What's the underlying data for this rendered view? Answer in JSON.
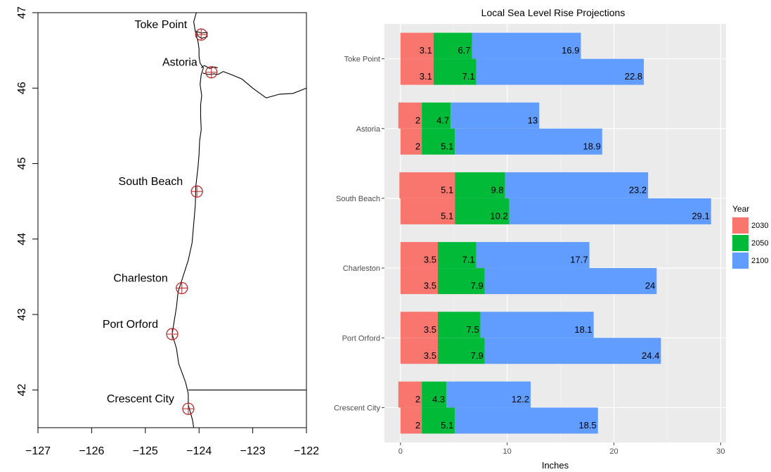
{
  "chart_data": [
    {
      "type": "map",
      "xlim": [
        -127,
        -122
      ],
      "ylim": [
        41.5,
        47
      ],
      "x_ticks": [
        -127,
        -126,
        -125,
        -124,
        -123,
        -122
      ],
      "y_ticks": [
        42,
        43,
        44,
        45,
        46,
        47
      ],
      "x_tick_labels": [
        "−127",
        "−126",
        "−125",
        "−124",
        "−123",
        "−122"
      ],
      "y_tick_labels": [
        "42",
        "43",
        "44",
        "45",
        "46",
        "47"
      ],
      "stations": [
        {
          "name": "Toke Point",
          "lon": -123.96,
          "lat": 46.71
        },
        {
          "name": "Astoria",
          "lon": -123.77,
          "lat": 46.21
        },
        {
          "name": "South Beach",
          "lon": -124.04,
          "lat": 44.63
        },
        {
          "name": "Charleston",
          "lon": -124.32,
          "lat": 43.35
        },
        {
          "name": "Port Orford",
          "lon": -124.5,
          "lat": 42.74
        },
        {
          "name": "Crescent City",
          "lon": -124.2,
          "lat": 41.75
        }
      ],
      "coastline": [
        [
          -124.05,
          47.0
        ],
        [
          -124.1,
          46.88
        ],
        [
          -124.07,
          46.75
        ],
        [
          -124.02,
          46.62
        ],
        [
          -124.0,
          46.52
        ],
        [
          -124.0,
          46.42
        ],
        [
          -123.98,
          46.33
        ],
        [
          -123.92,
          46.27
        ],
        [
          -123.93,
          46.24
        ],
        [
          -123.96,
          46.18
        ],
        [
          -123.98,
          46.05
        ],
        [
          -123.95,
          45.9
        ],
        [
          -123.97,
          45.78
        ],
        [
          -123.97,
          45.62
        ],
        [
          -123.96,
          45.45
        ],
        [
          -123.99,
          45.3
        ],
        [
          -124.0,
          45.12
        ],
        [
          -124.02,
          44.95
        ],
        [
          -124.06,
          44.7
        ],
        [
          -124.07,
          44.45
        ],
        [
          -124.1,
          44.2
        ],
        [
          -124.13,
          43.95
        ],
        [
          -124.2,
          43.72
        ],
        [
          -124.3,
          43.5
        ],
        [
          -124.39,
          43.3
        ],
        [
          -124.42,
          43.1
        ],
        [
          -124.47,
          42.88
        ],
        [
          -124.5,
          42.74
        ],
        [
          -124.42,
          42.55
        ],
        [
          -124.38,
          42.35
        ],
        [
          -124.25,
          42.1
        ],
        [
          -124.2,
          41.95
        ],
        [
          -124.2,
          41.8
        ],
        [
          -124.12,
          41.6
        ],
        [
          -124.1,
          41.5
        ]
      ],
      "columbia_north": [
        [
          -123.96,
          46.27
        ],
        [
          -123.9,
          46.3
        ],
        [
          -123.8,
          46.26
        ],
        [
          -123.72,
          46.28
        ],
        [
          -123.65,
          46.27
        ]
      ],
      "columbia_south": [
        [
          -123.93,
          46.2
        ],
        [
          -123.82,
          46.18
        ],
        [
          -123.72,
          46.19
        ],
        [
          -123.65,
          46.18
        ]
      ],
      "willapa_bay": [
        [
          -124.05,
          46.75
        ],
        [
          -123.95,
          46.73
        ],
        [
          -123.85,
          46.74
        ],
        [
          -123.85,
          46.68
        ],
        [
          -123.95,
          46.66
        ],
        [
          -124.02,
          46.69
        ]
      ],
      "or_wa_border": [
        [
          -123.65,
          46.18
        ],
        [
          -123.55,
          46.22
        ],
        [
          -123.4,
          46.18
        ],
        [
          -123.2,
          46.12
        ],
        [
          -123.0,
          46.0
        ],
        [
          -122.75,
          45.87
        ],
        [
          -122.5,
          45.92
        ],
        [
          -122.25,
          45.93
        ],
        [
          -122.0,
          46.0
        ]
      ],
      "ca_or_border": [
        [
          -124.2,
          42.0
        ],
        [
          -122.0,
          42.0
        ]
      ]
    },
    {
      "type": "bar",
      "title": "Local Sea Level Rise Projections",
      "xlabel": "Inches",
      "xlim": [
        -1.5,
        30.5
      ],
      "x_ticks": [
        0,
        10,
        20,
        30
      ],
      "legend": {
        "title": "Year",
        "position": "right"
      },
      "categories": [
        "Toke Point",
        "Astoria",
        "South Beach",
        "Charleston",
        "Port Orford",
        "Crescent City"
      ],
      "series": [
        {
          "name": "2030",
          "color": "#F8766D"
        },
        {
          "name": "2050",
          "color": "#00BA38"
        },
        {
          "name": "2100",
          "color": "#619CFF"
        }
      ],
      "bars": [
        [
          {
            "values": [
              3.1,
              6.7,
              16.9
            ],
            "start": 0
          },
          {
            "values": [
              3.1,
              7.1,
              22.8
            ],
            "start": 0
          }
        ],
        [
          {
            "values": [
              2,
              4.7,
              13
            ],
            "start": -0.2
          },
          {
            "values": [
              2,
              5.1,
              18.9
            ],
            "start": 0
          }
        ],
        [
          {
            "values": [
              5.1,
              9.8,
              23.2
            ],
            "start": -0.1
          },
          {
            "values": [
              5.1,
              10.2,
              29.1
            ],
            "start": 0
          }
        ],
        [
          {
            "values": [
              3.5,
              7.1,
              17.7
            ],
            "start": 0
          },
          {
            "values": [
              3.5,
              7.9,
              24
            ],
            "start": 0
          }
        ],
        [
          {
            "values": [
              3.5,
              7.5,
              18.1
            ],
            "start": 0
          },
          {
            "values": [
              3.5,
              7.9,
              24.4
            ],
            "start": 0
          }
        ],
        [
          {
            "values": [
              2,
              4.3,
              12.2
            ],
            "start": -0.2
          },
          {
            "values": [
              2,
              5.1,
              18.5
            ],
            "start": 0
          }
        ]
      ]
    }
  ]
}
